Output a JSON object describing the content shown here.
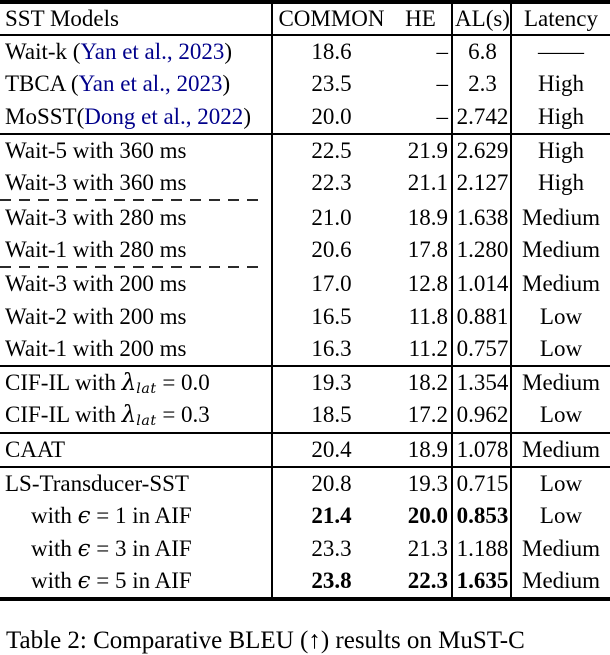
{
  "colors": {
    "cite_link": "#00008B",
    "rule": "#000000",
    "background": "#ffffff"
  },
  "caption": "Table 2: Comparative BLEU (↑) results on MuST-C",
  "table": {
    "header": {
      "model": "SST Models",
      "common": "COMMON",
      "he": "HE",
      "al": "AL(s)",
      "latency": "Latency"
    },
    "groups": [
      {
        "divider": "none",
        "rows": [
          {
            "model": [
              {
                "text": "Wait-k ("
              },
              {
                "text": "Yan et al., 2023",
                "style": "cite"
              },
              {
                "text": ")"
              }
            ],
            "common": "18.6",
            "he": "–",
            "al": "6.8",
            "latency": "——"
          },
          {
            "model": [
              {
                "text": "TBCA ("
              },
              {
                "text": "Yan et al., 2023",
                "style": "cite"
              },
              {
                "text": ")"
              }
            ],
            "common": "23.5",
            "he": "–",
            "al": "2.3",
            "latency": "High"
          },
          {
            "model": [
              {
                "text": "MoSST("
              },
              {
                "text": "Dong et al., 2022",
                "style": "cite"
              },
              {
                "text": ")"
              }
            ],
            "common": "20.0",
            "he": "–",
            "al": "2.742",
            "latency": "High"
          }
        ]
      },
      {
        "divider": "solid",
        "rows": [
          {
            "model": [
              {
                "text": "Wait-5 with 360 ms"
              }
            ],
            "common": "22.5",
            "he": "21.9",
            "al": "2.629",
            "latency": "High"
          },
          {
            "model": [
              {
                "text": "Wait-3 with 360 ms"
              }
            ],
            "common": "22.3",
            "he": "21.1",
            "al": "2.127",
            "latency": "High"
          }
        ]
      },
      {
        "divider": "dashed",
        "rows": [
          {
            "model": [
              {
                "text": "Wait-3 with 280 ms"
              }
            ],
            "common": "21.0",
            "he": "18.9",
            "al": "1.638",
            "latency": "Medium"
          },
          {
            "model": [
              {
                "text": "Wait-1 with 280 ms"
              }
            ],
            "common": "20.6",
            "he": "17.8",
            "al": "1.280",
            "latency": "Medium"
          }
        ]
      },
      {
        "divider": "dashed",
        "rows": [
          {
            "model": [
              {
                "text": "Wait-3 with 200 ms"
              }
            ],
            "common": "17.0",
            "he": "12.8",
            "al": "1.014",
            "latency": "Medium"
          },
          {
            "model": [
              {
                "text": "Wait-2 with 200 ms"
              }
            ],
            "common": "16.5",
            "he": "11.8",
            "al": "0.881",
            "latency": "Low"
          },
          {
            "model": [
              {
                "text": "Wait-1 with 200 ms"
              }
            ],
            "common": "16.3",
            "he": "11.2",
            "al": "0.757",
            "latency": "Low"
          }
        ]
      },
      {
        "divider": "solid",
        "rows": [
          {
            "model": [
              {
                "text": "CIF-IL with "
              },
              {
                "text": "λ",
                "style": "math"
              },
              {
                "text": "lat",
                "style": "sub"
              },
              {
                "text": " = 0.0"
              }
            ],
            "common": "19.3",
            "he": "18.2",
            "al": "1.354",
            "latency": "Medium"
          },
          {
            "model": [
              {
                "text": "CIF-IL with "
              },
              {
                "text": "λ",
                "style": "math"
              },
              {
                "text": "lat",
                "style": "sub"
              },
              {
                "text": " = 0.3"
              }
            ],
            "common": "18.5",
            "he": "17.2",
            "al": "0.962",
            "latency": "Low"
          }
        ]
      },
      {
        "divider": "solid",
        "rows": [
          {
            "model": [
              {
                "text": "CAAT"
              }
            ],
            "common": "20.4",
            "he": "18.9",
            "al": "1.078",
            "latency": "Medium"
          }
        ]
      },
      {
        "divider": "solid",
        "rows": [
          {
            "model": [
              {
                "text": "LS-Transducer-SST"
              }
            ],
            "common": "20.8",
            "he": "19.3",
            "al": "0.715",
            "latency": "Low"
          },
          {
            "model": [
              {
                "text": "with "
              },
              {
                "text": "ϵ",
                "style": "math"
              },
              {
                "text": " = 1 in AIF"
              }
            ],
            "indent": true,
            "bold": true,
            "common": "21.4",
            "he": "20.0",
            "al": "0.853",
            "latency": "Low"
          },
          {
            "model": [
              {
                "text": "with "
              },
              {
                "text": "ϵ",
                "style": "math"
              },
              {
                "text": " = 3 in AIF"
              }
            ],
            "indent": true,
            "common": "23.3",
            "he": "21.3",
            "al": "1.188",
            "latency": "Medium"
          },
          {
            "model": [
              {
                "text": "with "
              },
              {
                "text": "ϵ",
                "style": "math"
              },
              {
                "text": " = 5 in AIF"
              }
            ],
            "indent": true,
            "bold": true,
            "common": "23.8",
            "he": "22.3",
            "al": "1.635",
            "latency": "Medium"
          }
        ]
      }
    ]
  }
}
